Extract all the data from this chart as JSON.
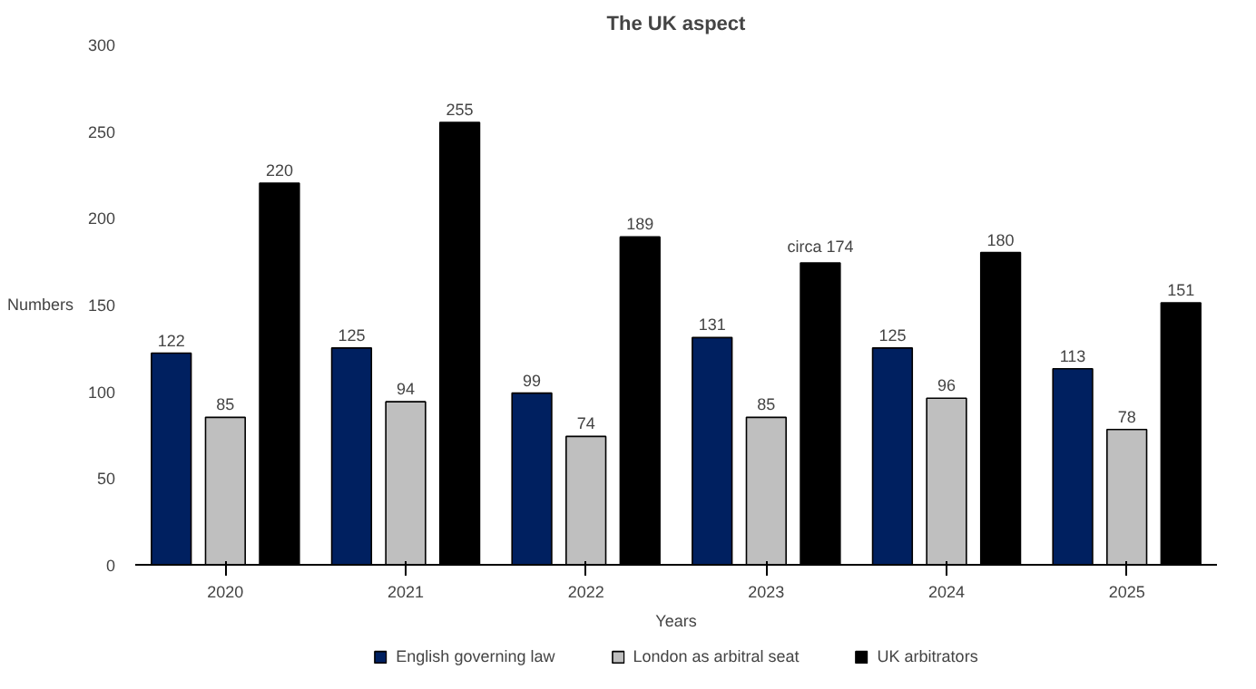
{
  "chart_data": {
    "type": "bar",
    "title": "The UK aspect",
    "xlabel": "Years",
    "ylabel": "Numbers",
    "categories": [
      "2020",
      "2021",
      "2022",
      "2023",
      "2024",
      "2025"
    ],
    "series": [
      {
        "name": "English governing law",
        "color": "#002060",
        "values": [
          122,
          125,
          99,
          131,
          125,
          113
        ],
        "value_labels": [
          "122",
          "125",
          "99",
          "131",
          "125",
          "113"
        ]
      },
      {
        "name": "London as arbitral seat",
        "color": "#bfbfbf",
        "values": [
          85,
          94,
          74,
          85,
          96,
          78
        ],
        "value_labels": [
          "85",
          "94",
          "74",
          "85",
          "96",
          "78"
        ]
      },
      {
        "name": "UK arbitrators",
        "color": "#000000",
        "values": [
          220,
          255,
          189,
          174,
          180,
          151
        ],
        "value_labels": [
          "220",
          "255",
          "189",
          "circa 174",
          "180",
          "151"
        ]
      }
    ],
    "ylim": [
      0,
      300
    ],
    "yticks": [
      0,
      50,
      100,
      150,
      200,
      250,
      300
    ],
    "grid": false,
    "legend": "bottom"
  }
}
